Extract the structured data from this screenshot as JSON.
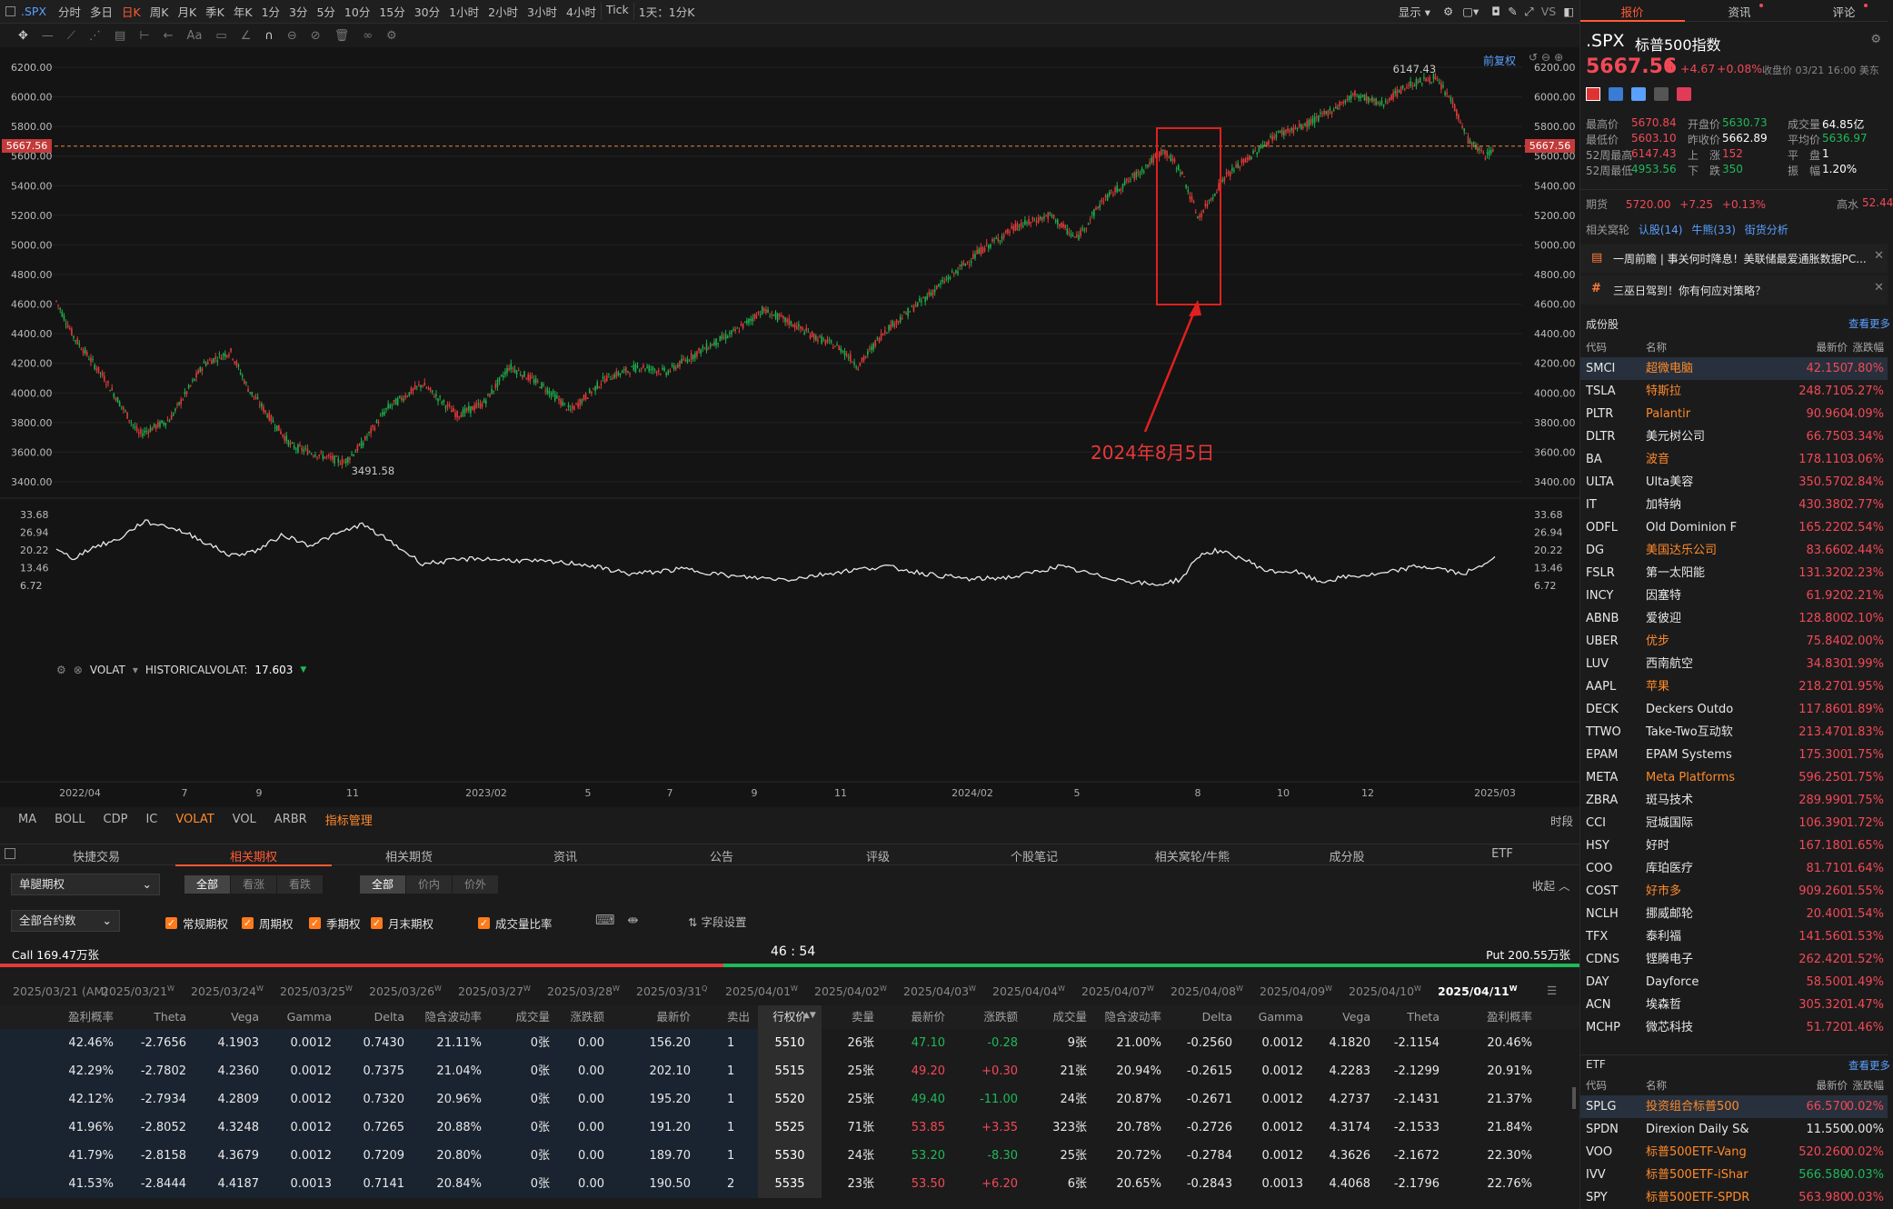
{
  "toolbar": {
    "symbol": ".SPX",
    "periods": [
      "分时",
      "多日",
      "日K",
      "周K",
      "月K",
      "季K",
      "年K",
      "1分",
      "3分",
      "5分",
      "10分",
      "15分",
      "30分",
      "1小时",
      "2小时",
      "3小时",
      "4小时",
      "Tick",
      "1天：1分K"
    ],
    "active_period": "日K",
    "display_label": "显示",
    "vs_label": "VS",
    "adjust_label": "前复权"
  },
  "chart": {
    "price_ticks": [
      "6200.00",
      "6000.00",
      "5800.00",
      "5600.00",
      "5400.00",
      "5200.00",
      "5000.00",
      "4800.00",
      "4600.00",
      "4400.00",
      "4200.00",
      "4000.00",
      "3800.00",
      "3600.00",
      "3400.00"
    ],
    "last_price_tag": "5667.56",
    "high_label": "6147.43",
    "low_label": "3491.58",
    "annotation": "2024年8月5日",
    "vol_header": {
      "name": "VOLAT",
      "indicator": "HISTORICALVOLAT:",
      "value": "17.603"
    },
    "vol_ticks": [
      "33.68",
      "26.94",
      "20.22",
      "13.46",
      "6.72"
    ],
    "x_labels": [
      "2022/04",
      "7",
      "9",
      "11",
      "2023/02",
      "5",
      "7",
      "9",
      "11",
      "2024/02",
      "5",
      "8",
      "10",
      "12",
      "2025/03"
    ],
    "time_label": "时段"
  },
  "indicator_tabs": [
    "MA",
    "BOLL",
    "CDP",
    "IC",
    "VOLAT",
    "VOL",
    "ARBR",
    "指标管理"
  ],
  "indicator_active": "VOLAT",
  "bottom_tabs": [
    "快捷交易",
    "相关期权",
    "相关期货",
    "资讯",
    "公告",
    "评级",
    "个股笔记",
    "相关窝轮/牛熊",
    "成分股",
    "ETF"
  ],
  "bottom_active": "相关期权",
  "options": {
    "type_select": "单腿期权",
    "seg1": [
      "全部",
      "看涨",
      "看跌"
    ],
    "seg2": [
      "全部",
      "价内",
      "价外"
    ],
    "collapse": "收起",
    "contract_select": "全部合约数",
    "checks": [
      "常规期权",
      "周期权",
      "季期权",
      "月末期权"
    ],
    "volume_ratio": "成交量比率",
    "field_settings": "字段设置",
    "call_label": "Call 169.47万张",
    "timer": "46 : 54",
    "put_label": "Put 200.55万张",
    "call_ratio": 0.458,
    "dates": [
      {
        "t": "2025/03/21 (AM)",
        "s": ""
      },
      {
        "t": "2025/03/21",
        "s": "W"
      },
      {
        "t": "2025/03/24",
        "s": "W"
      },
      {
        "t": "2025/03/25",
        "s": "W"
      },
      {
        "t": "2025/03/26",
        "s": "W"
      },
      {
        "t": "2025/03/27",
        "s": "W"
      },
      {
        "t": "2025/03/28",
        "s": "W"
      },
      {
        "t": "2025/03/31",
        "s": "Q"
      },
      {
        "t": "2025/04/01",
        "s": "W"
      },
      {
        "t": "2025/04/02",
        "s": "W"
      },
      {
        "t": "2025/04/03",
        "s": "W"
      },
      {
        "t": "2025/04/04",
        "s": "W"
      },
      {
        "t": "2025/04/07",
        "s": "W"
      },
      {
        "t": "2025/04/08",
        "s": "W"
      },
      {
        "t": "2025/04/09",
        "s": "W"
      },
      {
        "t": "2025/04/10",
        "s": "W"
      },
      {
        "t": "2025/04/11",
        "s": "W"
      }
    ],
    "active_date": "2025/04/11",
    "call_headers": [
      "盈利概率",
      "Theta",
      "Vega",
      "Gamma",
      "Delta",
      "隐含波动率",
      "成交量",
      "涨跌额",
      "最新价",
      "卖出"
    ],
    "strike_header": "行权价",
    "put_headers": [
      "卖量",
      "最新价",
      "涨跌额",
      "成交量",
      "隐含波动率",
      "Delta",
      "Gamma",
      "Vega",
      "Theta",
      "盈利概率"
    ],
    "rows": [
      {
        "c": [
          "42.46%",
          "-2.7656",
          "4.1903",
          "0.0012",
          "0.7430",
          "21.11%",
          "0张",
          "0.00",
          "156.20",
          "1"
        ],
        "k": "5510",
        "p": [
          "26张",
          "47.10",
          "-0.28",
          "9张",
          "21.00%",
          "-0.2560",
          "0.0012",
          "4.1820",
          "-2.1154",
          "20.46%"
        ]
      },
      {
        "c": [
          "42.29%",
          "-2.7802",
          "4.2360",
          "0.0012",
          "0.7375",
          "21.04%",
          "0张",
          "0.00",
          "202.10",
          "1"
        ],
        "k": "5515",
        "p": [
          "25张",
          "49.20",
          "+0.30",
          "21张",
          "20.94%",
          "-0.2615",
          "0.0012",
          "4.2283",
          "-2.1299",
          "20.91%"
        ]
      },
      {
        "c": [
          "42.12%",
          "-2.7934",
          "4.2809",
          "0.0012",
          "0.7320",
          "20.96%",
          "0张",
          "0.00",
          "195.20",
          "1"
        ],
        "k": "5520",
        "p": [
          "25张",
          "49.40",
          "-11.00",
          "24张",
          "20.87%",
          "-0.2671",
          "0.0012",
          "4.2737",
          "-2.1431",
          "21.37%"
        ]
      },
      {
        "c": [
          "41.96%",
          "-2.8052",
          "4.3248",
          "0.0012",
          "0.7265",
          "20.88%",
          "0张",
          "0.00",
          "191.20",
          "1"
        ],
        "k": "5525",
        "p": [
          "71张",
          "53.85",
          "+3.35",
          "323张",
          "20.78%",
          "-0.2726",
          "0.0012",
          "4.3174",
          "-2.1533",
          "21.84%"
        ]
      },
      {
        "c": [
          "41.79%",
          "-2.8158",
          "4.3679",
          "0.0012",
          "0.7209",
          "20.80%",
          "0张",
          "0.00",
          "189.70",
          "1"
        ],
        "k": "5530",
        "p": [
          "24张",
          "53.20",
          "-8.30",
          "25张",
          "20.72%",
          "-0.2784",
          "0.0012",
          "4.3626",
          "-2.1672",
          "22.30%"
        ]
      },
      {
        "c": [
          "41.53%",
          "-2.8444",
          "4.4187",
          "0.0013",
          "0.7141",
          "20.84%",
          "0张",
          "0.00",
          "190.50",
          "2"
        ],
        "k": "5535",
        "p": [
          "23张",
          "53.50",
          "+6.20",
          "6张",
          "20.65%",
          "-0.2843",
          "0.0013",
          "4.4068",
          "-2.1796",
          "22.76%"
        ]
      }
    ]
  },
  "right": {
    "tabs": [
      "报价",
      "资讯",
      "评论"
    ],
    "symbol": ".SPX",
    "name": "标普500指数",
    "price": "5667.56",
    "change": "+4.67",
    "change_pct": "+0.08%",
    "close_info": "收盘价 03/21 16:00 美东",
    "stats": {
      "high_l": "最高价",
      "high": "5670.84",
      "open_l": "开盘价",
      "open": "5630.73",
      "vol_l": "成交量",
      "vol": "64.85亿",
      "low_l": "最低价",
      "low": "5603.10",
      "prev_l": "昨收价",
      "prev": "5662.89",
      "avg_l": "平均价",
      "avg": "5636.97",
      "h52_l": "52周最高",
      "h52": "6147.43",
      "up_l": "上　涨",
      "up": "152",
      "flat_l": "平　盘",
      "flat": "1",
      "l52_l": "52周最低",
      "l52": "4953.56",
      "down_l": "下　跌",
      "down": "350",
      "amp_l": "振　幅",
      "amp": "1.20%"
    },
    "futures": {
      "label": "期货",
      "price": "5720.00",
      "chg": "+7.25",
      "pct": "+0.13%",
      "extra_l": "高水",
      "extra": "52.44"
    },
    "related": {
      "label": "相关窝轮",
      "a": "认股(14)",
      "b": "牛熊(33)",
      "c": "街货分析"
    },
    "news": [
      "一周前瞻 | 事关何时降息！美联储最爱通胀数据PC...",
      "三巫日驾到！你有何应对策略？"
    ],
    "constituents_title": "成份股",
    "more": "查看更多",
    "list_headers": [
      "代码",
      "名称",
      "最新价",
      "涨跌幅"
    ],
    "constituents": [
      [
        "SMCI",
        "超微电脑",
        "42.150",
        "7.80%"
      ],
      [
        "TSLA",
        "特斯拉",
        "248.710",
        "5.27%"
      ],
      [
        "PLTR",
        "Palantir",
        "90.960",
        "4.09%"
      ],
      [
        "DLTR",
        "美元树公司",
        "66.750",
        "3.34%"
      ],
      [
        "BA",
        "波音",
        "178.110",
        "3.06%"
      ],
      [
        "ULTA",
        "Ulta美容",
        "350.570",
        "2.84%"
      ],
      [
        "IT",
        "加特纳",
        "430.380",
        "2.77%"
      ],
      [
        "ODFL",
        "Old Dominion F",
        "165.220",
        "2.54%"
      ],
      [
        "DG",
        "美国达乐公司",
        "83.660",
        "2.44%"
      ],
      [
        "FSLR",
        "第一太阳能",
        "131.320",
        "2.23%"
      ],
      [
        "INCY",
        "因塞特",
        "61.920",
        "2.21%"
      ],
      [
        "ABNB",
        "爱彼迎",
        "128.800",
        "2.10%"
      ],
      [
        "UBER",
        "优步",
        "75.840",
        "2.00%"
      ],
      [
        "LUV",
        "西南航空",
        "34.830",
        "1.99%"
      ],
      [
        "AAPL",
        "苹果",
        "218.270",
        "1.95%"
      ],
      [
        "DECK",
        "Deckers Outdo",
        "117.860",
        "1.89%"
      ],
      [
        "TTWO",
        "Take-Two互动软",
        "213.470",
        "1.83%"
      ],
      [
        "EPAM",
        "EPAM Systems",
        "175.300",
        "1.75%"
      ],
      [
        "META",
        "Meta Platforms",
        "596.250",
        "1.75%"
      ],
      [
        "ZBRA",
        "斑马技术",
        "289.990",
        "1.75%"
      ],
      [
        "CCI",
        "冠城国际",
        "106.390",
        "1.72%"
      ],
      [
        "HSY",
        "好时",
        "167.180",
        "1.65%"
      ],
      [
        "COO",
        "库珀医疗",
        "81.710",
        "1.64%"
      ],
      [
        "COST",
        "好市多",
        "909.260",
        "1.55%"
      ],
      [
        "NCLH",
        "挪威邮轮",
        "20.400",
        "1.54%"
      ],
      [
        "TFX",
        "泰利福",
        "141.560",
        "1.53%"
      ],
      [
        "CDNS",
        "铿腾电子",
        "262.420",
        "1.52%"
      ],
      [
        "DAY",
        "Dayforce",
        "58.500",
        "1.49%"
      ],
      [
        "ACN",
        "埃森哲",
        "305.320",
        "1.47%"
      ],
      [
        "MCHP",
        "微芯科技",
        "51.720",
        "1.46%"
      ]
    ],
    "constituent_highlight": [
      "SMCI",
      "TSLA",
      "PLTR",
      "BA",
      "DG",
      "UBER",
      "AAPL",
      "META",
      "COST"
    ],
    "etf_title": "ETF",
    "etfs": [
      [
        "SPLG",
        "投资组合标普500",
        "66.570",
        "0.02%"
      ],
      [
        "SPDN",
        "Direxion Daily S&",
        "11.550",
        "0.00%"
      ],
      [
        "VOO",
        "标普500ETF-Vang",
        "520.260",
        "0.02%"
      ],
      [
        "IVV",
        "标普500ETF-iShar",
        "566.580",
        "-0.03%"
      ],
      [
        "SPY",
        "标普500ETF-SPDR",
        "563.980",
        "0.03%"
      ]
    ]
  }
}
